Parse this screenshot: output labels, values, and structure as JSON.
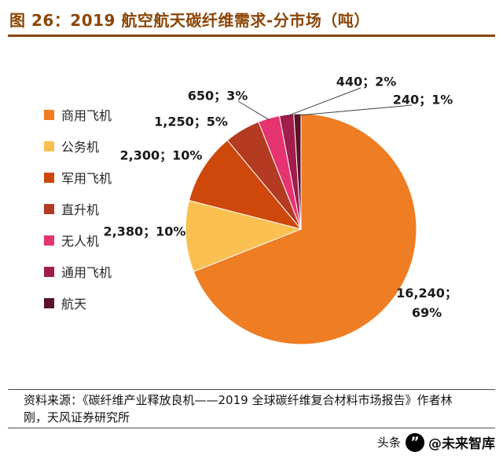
{
  "header": {
    "title": "图 26：2019 航空航天碳纤维需求-分市场（吨）",
    "accent_color": "#8c4506"
  },
  "chart_data": {
    "type": "pie",
    "title": "图 26：2019 航空航天碳纤维需求-分市场（吨）",
    "unit": "吨",
    "categories": [
      "商用飞机",
      "公务机",
      "军用飞机",
      "直升机",
      "无人机",
      "通用飞机",
      "航天"
    ],
    "values": [
      16240,
      2380,
      2300,
      1250,
      650,
      440,
      240
    ],
    "percents": [
      69,
      10,
      10,
      5,
      3,
      2,
      1
    ],
    "colors": [
      "#EF7D23",
      "#FBC051",
      "#CE470B",
      "#B43B22",
      "#E63471",
      "#A01D4C",
      "#5D1226"
    ],
    "labels": [
      [
        "16,240；",
        "69%"
      ],
      [
        "2,380；10%"
      ],
      [
        "2,300；10%"
      ],
      [
        "1,250；5%"
      ],
      [
        "650；3%"
      ],
      [
        "440；2%"
      ],
      [
        "240；1%"
      ]
    ],
    "legend_position": "left",
    "start_angle_deg": 0,
    "direction": "clockwise"
  },
  "footer": {
    "source": "资料来源：《碳纤维产业释放良机——2019 全球碳纤维复合材料市场报告》作者林刚，天风证券研究所",
    "watermark": {
      "platform": "头条",
      "account": "@未来智库",
      "logo_glyph": "”"
    }
  }
}
